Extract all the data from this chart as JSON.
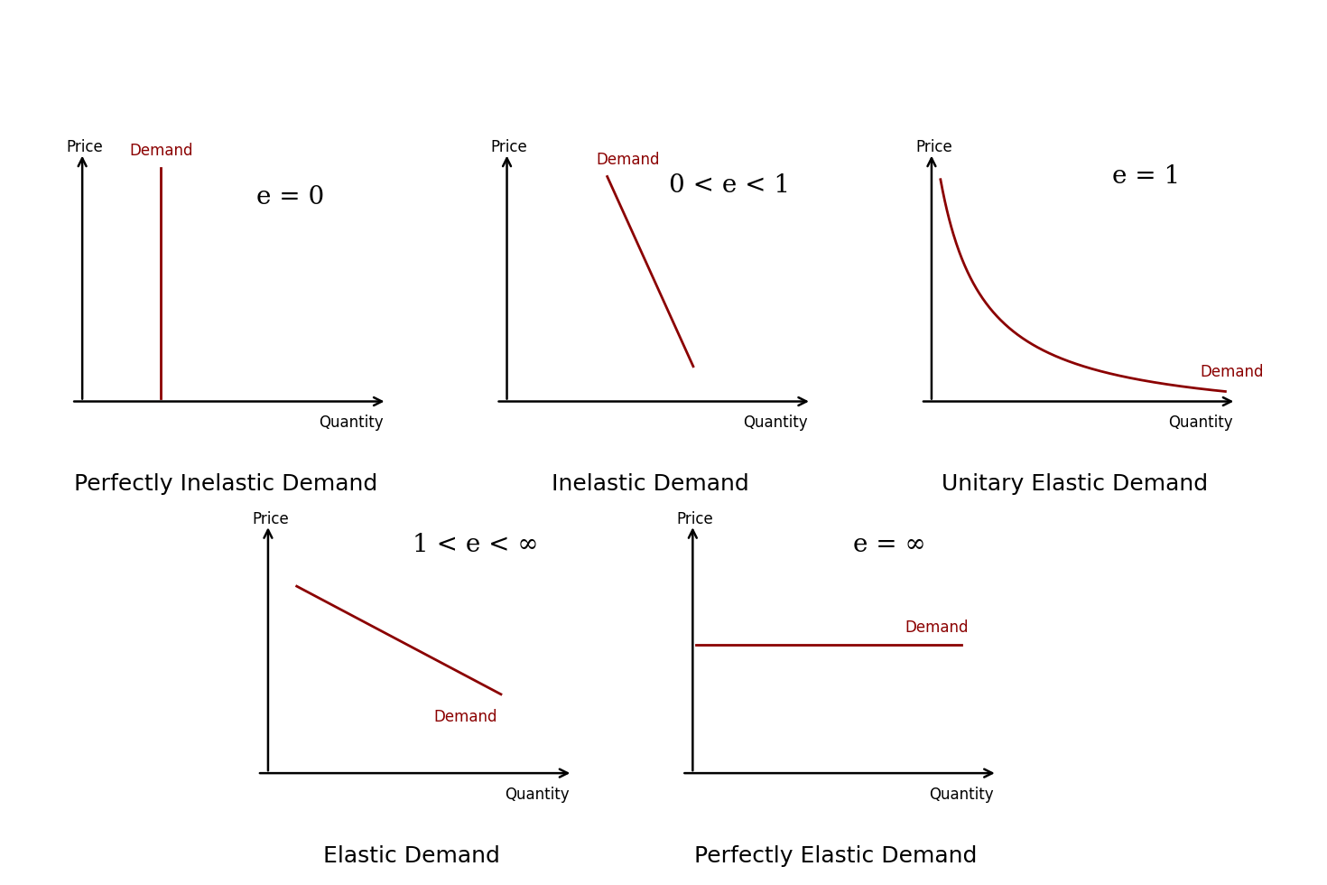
{
  "background_color": "#ffffff",
  "demand_color": "#8B0000",
  "axis_color": "#000000",
  "label_fontsize": 12,
  "equation_fontsize": 20,
  "title_fontsize": 18,
  "axis_label_fontsize": 12,
  "panels": [
    {
      "title": "Perfectly Inelastic Demand",
      "equation": "e = 0",
      "type": "vertical"
    },
    {
      "title": "Inelastic Demand",
      "equation": "0 < e < 1",
      "type": "steep_line"
    },
    {
      "title": "Unitary Elastic Demand",
      "equation": "e = 1",
      "type": "hyperbola"
    },
    {
      "title": "Elastic Demand",
      "equation": "1 < e < ∞",
      "type": "gentle_line"
    },
    {
      "title": "Perfectly Elastic Demand",
      "equation": "e = ∞",
      "type": "horizontal"
    }
  ]
}
